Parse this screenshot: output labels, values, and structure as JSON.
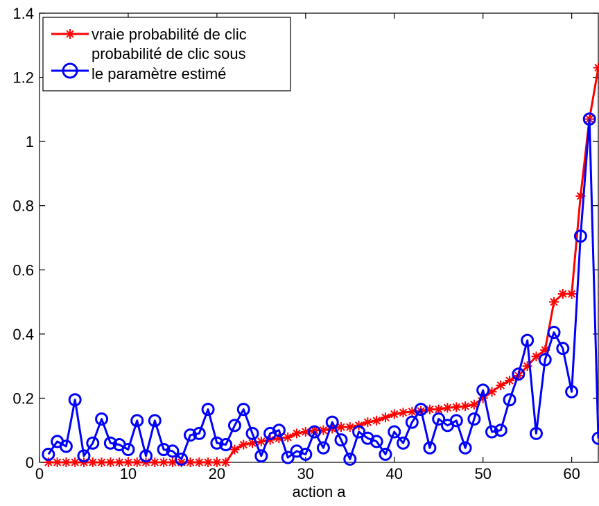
{
  "chart_data": {
    "type": "line",
    "xlabel": "action a",
    "ylabel": "",
    "title": "",
    "xlim": [
      0,
      63
    ],
    "ylim": [
      0,
      1.4
    ],
    "x_ticks": [
      0,
      10,
      20,
      30,
      40,
      50,
      60
    ],
    "y_ticks": [
      0,
      0.2,
      0.4,
      0.6,
      0.8,
      1,
      1.2,
      1.4
    ],
    "x_tick_labels": [
      "0",
      "10",
      "20",
      "30",
      "40",
      "50",
      "60"
    ],
    "y_tick_labels": [
      "0",
      "0.2",
      "0.4",
      "0.6",
      "0.8",
      "1",
      "1.2",
      "1.4"
    ],
    "grid": false,
    "legend": {
      "placement": "top-left",
      "entries": [
        {
          "lines": [
            "vraie probabilité de clic"
          ]
        },
        {
          "lines": [
            "probabilité de clic sous",
            " le paramètre estimé"
          ]
        }
      ]
    },
    "x": [
      1,
      2,
      3,
      4,
      5,
      6,
      7,
      8,
      9,
      10,
      11,
      12,
      13,
      14,
      15,
      16,
      17,
      18,
      19,
      20,
      21,
      22,
      23,
      24,
      25,
      26,
      27,
      28,
      29,
      30,
      31,
      32,
      33,
      34,
      35,
      36,
      37,
      38,
      39,
      40,
      41,
      42,
      43,
      44,
      45,
      46,
      47,
      48,
      49,
      50,
      51,
      52,
      53,
      54,
      55,
      56,
      57,
      58,
      59,
      60,
      61,
      62,
      63
    ],
    "series": [
      {
        "name": "vraie probabilité de clic",
        "color": "#ff0000",
        "marker": "asterisk",
        "values": [
          0,
          0,
          0,
          0,
          0,
          0,
          0,
          0,
          0,
          0,
          0,
          0,
          0,
          0,
          0,
          0,
          0,
          0,
          0,
          0,
          0,
          0.04,
          0.055,
          0.06,
          0.065,
          0.07,
          0.075,
          0.078,
          0.09,
          0.095,
          0.1,
          0.1,
          0.105,
          0.11,
          0.11,
          0.115,
          0.125,
          0.13,
          0.14,
          0.15,
          0.155,
          0.158,
          0.16,
          0.165,
          0.165,
          0.17,
          0.172,
          0.175,
          0.18,
          0.2,
          0.22,
          0.24,
          0.255,
          0.27,
          0.3,
          0.33,
          0.35,
          0.5,
          0.525,
          0.525,
          0.83,
          1.07,
          1.23
        ]
      },
      {
        "name": "probabilité de clic sous le paramètre estimé",
        "color": "#0000ff",
        "marker": "circle",
        "values": [
          0.025,
          0.065,
          0.05,
          0.195,
          0.02,
          0.06,
          0.135,
          0.06,
          0.055,
          0.04,
          0.13,
          0.02,
          0.13,
          0.04,
          0.035,
          0.01,
          0.085,
          0.09,
          0.165,
          0.06,
          0.055,
          0.115,
          0.165,
          0.09,
          0.02,
          0.09,
          0.1,
          0.015,
          0.035,
          0.025,
          0.095,
          0.045,
          0.125,
          0.07,
          0.01,
          0.095,
          0.075,
          0.065,
          0.025,
          0.095,
          0.06,
          0.125,
          0.165,
          0.045,
          0.135,
          0.115,
          0.13,
          0.045,
          0.135,
          0.225,
          0.095,
          0.1,
          0.195,
          0.275,
          0.38,
          0.09,
          0.32,
          0.405,
          0.355,
          0.22,
          0.705,
          1.07,
          0.075
        ]
      }
    ]
  }
}
